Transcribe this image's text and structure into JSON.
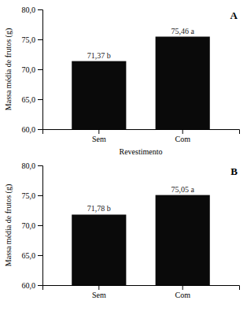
{
  "chart_data": [
    {
      "type": "bar",
      "categories": [
        "Sem",
        "Com"
      ],
      "values": [
        71.37,
        75.46
      ],
      "value_labels": [
        "71,37 b",
        "75,46 a"
      ],
      "data_labels": true,
      "ylabel": "Massa média de frutos (g)",
      "xlabel": "Revestimento",
      "annotations": [
        "A"
      ],
      "color": "#0a0a0a",
      "ylim": [
        60.0,
        80.0
      ],
      "yticks": [
        {
          "value": 60.0,
          "label": "60,0"
        },
        {
          "value": 65.0,
          "label": "65,0"
        },
        {
          "value": 70.0,
          "label": "70,0"
        },
        {
          "value": 75.0,
          "label": "75,0"
        },
        {
          "value": 80.0,
          "label": "80,0"
        }
      ]
    },
    {
      "type": "bar",
      "categories": [
        "Sem",
        "Com"
      ],
      "values": [
        71.78,
        75.05
      ],
      "value_labels": [
        "71,78 b",
        "75,05 a"
      ],
      "data_labels": true,
      "ylabel": "Massa média de frutos (g)",
      "annotations": [
        "B"
      ],
      "color": "#0a0a0a",
      "ylim": [
        60.0,
        80.0
      ],
      "yticks": [
        {
          "value": 60.0,
          "label": "60,0"
        },
        {
          "value": 65.0,
          "label": "65,0"
        },
        {
          "value": 70.0,
          "label": "70,0"
        },
        {
          "value": 75.0,
          "label": "75,0"
        },
        {
          "value": 80.0,
          "label": "80,0"
        }
      ]
    }
  ]
}
